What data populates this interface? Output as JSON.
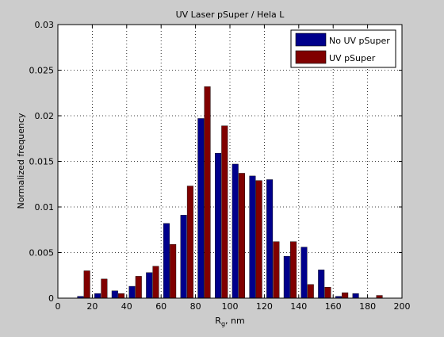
{
  "chart_data": {
    "type": "bar",
    "title": "UV Laser pSuper / Hela L",
    "xlabel_main": "R",
    "xlabel_sub": "g",
    "xlabel_rest": ", nm",
    "ylabel": "Normalized frequency",
    "xlim": [
      0,
      200
    ],
    "ylim": [
      0,
      0.03
    ],
    "xticks": [
      0,
      20,
      40,
      60,
      80,
      100,
      120,
      140,
      160,
      180,
      200
    ],
    "xtick_labels": [
      "0",
      "20",
      "40",
      "60",
      "80",
      "100",
      "120",
      "140",
      "160",
      "180",
      "200"
    ],
    "yticks": [
      0,
      0.005,
      0.01,
      0.015,
      0.02,
      0.025,
      0.03
    ],
    "ytick_labels": [
      "0",
      "0.005",
      "0.01",
      "0.015",
      "0.02",
      "0.025",
      "0.03"
    ],
    "grid": true,
    "legend_position": "top-right",
    "x": [
      15,
      25,
      35,
      45,
      55,
      65,
      75,
      85,
      95,
      105,
      115,
      125,
      135,
      145,
      155,
      165,
      175,
      185
    ],
    "series": [
      {
        "name": "No UV pSuper",
        "color": "#00008b",
        "values": [
          0.0002,
          0.0005,
          0.0008,
          0.0013,
          0.0028,
          0.0082,
          0.0091,
          0.0197,
          0.0159,
          0.0147,
          0.0134,
          0.013,
          0.0046,
          0.0056,
          0.0031,
          0.0002,
          0.0005,
          0.0
        ]
      },
      {
        "name": "UV pSuper",
        "color": "#800000",
        "values": [
          0.003,
          0.0021,
          0.0005,
          0.0024,
          0.0035,
          0.0059,
          0.0123,
          0.0232,
          0.0189,
          0.0137,
          0.0129,
          0.0062,
          0.0062,
          0.0015,
          0.0012,
          0.0006,
          0.0,
          0.0003
        ]
      }
    ]
  }
}
